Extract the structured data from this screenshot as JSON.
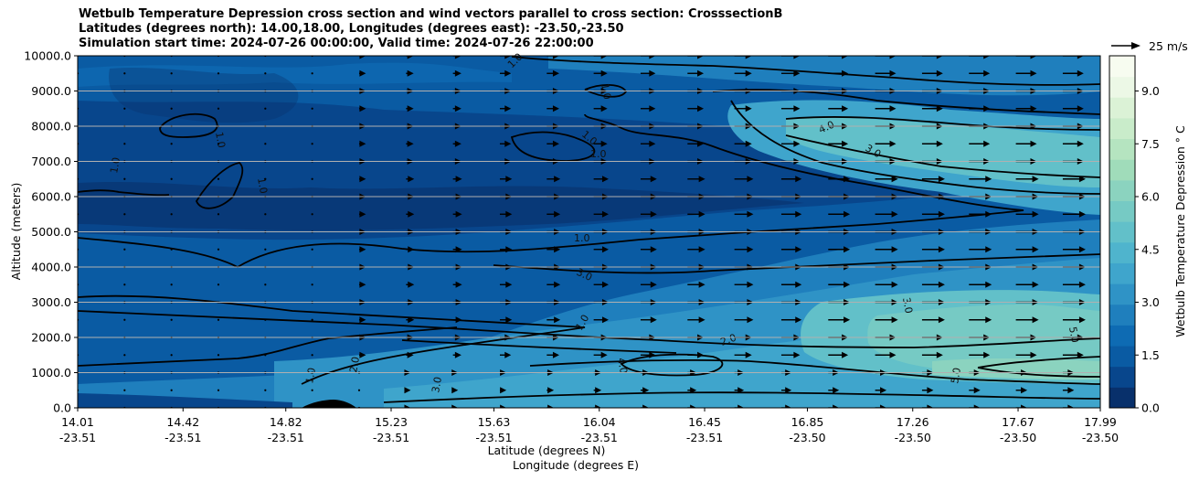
{
  "chart_data": {
    "type": "heatmap",
    "title_lines": [
      "Wetbulb Temperature Depression cross section and wind vectors parallel to cross section: CrosssectionB",
      "Latitudes (degrees north): 14.00,18.00, Longitudes (degrees east): -23.50,-23.50",
      "Simulation start time: 2024-07-26 00:00:00, Valid time: 2024-07-26 22:00:00"
    ],
    "ylabel": "Altitude (meters)",
    "xlabel_lines": [
      "Latitude (degrees N)",
      "Longitude (degrees E)"
    ],
    "ylim": [
      0,
      10000
    ],
    "y_ticks": [
      "0.0",
      "1000.0",
      "2000.0",
      "3000.0",
      "4000.0",
      "5000.0",
      "6000.0",
      "7000.0",
      "8000.0",
      "9000.0",
      "10000.0"
    ],
    "x_ticks": [
      {
        "lat": "14.01",
        "lon": "-23.51"
      },
      {
        "lat": "14.42",
        "lon": "-23.51"
      },
      {
        "lat": "14.82",
        "lon": "-23.51"
      },
      {
        "lat": "15.23",
        "lon": "-23.51"
      },
      {
        "lat": "15.63",
        "lon": "-23.51"
      },
      {
        "lat": "16.04",
        "lon": "-23.51"
      },
      {
        "lat": "16.45",
        "lon": "-23.51"
      },
      {
        "lat": "16.85",
        "lon": "-23.50"
      },
      {
        "lat": "17.26",
        "lon": "-23.50"
      },
      {
        "lat": "17.67",
        "lon": "-23.50"
      },
      {
        "lat": "17.99",
        "lon": "-23.50"
      }
    ],
    "colorbar": {
      "label": "Wetbulb Temperature Depression ° C",
      "ticks": [
        "0.0",
        "1.5",
        "3.0",
        "4.5",
        "6.0",
        "7.5",
        "9.0"
      ],
      "range": [
        0,
        10
      ],
      "colors": [
        "#08306b",
        "#08468c",
        "#0a5ba3",
        "#0e6bb3",
        "#1f7fbd",
        "#2f93c6",
        "#3fa5cc",
        "#4fb4cd",
        "#62c0c9",
        "#76cac4",
        "#8bd3bf",
        "#a0dcba",
        "#b5e4c0",
        "#c9ecca",
        "#dbf2d6",
        "#ecf8e6",
        "#f7fcf0"
      ]
    },
    "quiver_key": {
      "label": "25 m/s",
      "speed": 25
    },
    "contour_labels": [
      "1.0",
      "2.0",
      "3.0",
      "4.0",
      "5.0"
    ],
    "surface_feature": "terrain at ~15.1 N"
  }
}
